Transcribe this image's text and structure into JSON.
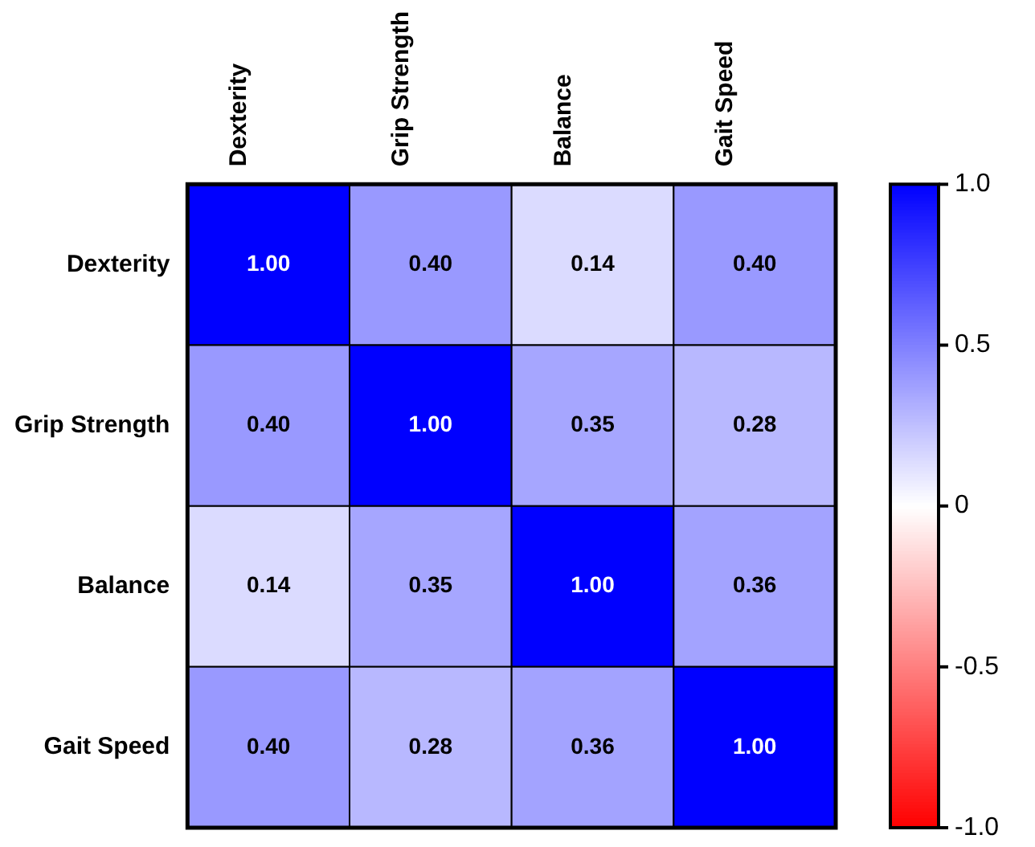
{
  "chart_data": {
    "type": "heatmap",
    "categories": [
      "Dexterity",
      "Grip Strength",
      "Balance",
      "Gait Speed"
    ],
    "y_categories": [
      "Dexterity",
      "Grip Strength",
      "Balance",
      "Gait Speed"
    ],
    "cells": [
      [
        1,
        0.4,
        0.14,
        0.4
      ],
      [
        0.4,
        1,
        0.35,
        0.28
      ],
      [
        0.14,
        0.35,
        1,
        0.36
      ],
      [
        0.4,
        0.28,
        0.36,
        1
      ]
    ],
    "cell_labels": [
      [
        "1.00",
        "0.40",
        "0.14",
        "0.40"
      ],
      [
        "0.40",
        "1.00",
        "0.35",
        "0.28"
      ],
      [
        "0.14",
        "0.35",
        "1.00",
        "0.36"
      ],
      [
        "0.40",
        "0.28",
        "0.36",
        "1.00"
      ]
    ],
    "clim": [
      -1,
      1
    ],
    "cticks": [
      {
        "value": 1,
        "label": "1.0"
      },
      0.5,
      0,
      -0.5,
      {
        "value": -1,
        "label": "-1.0"
      }
    ]
  }
}
